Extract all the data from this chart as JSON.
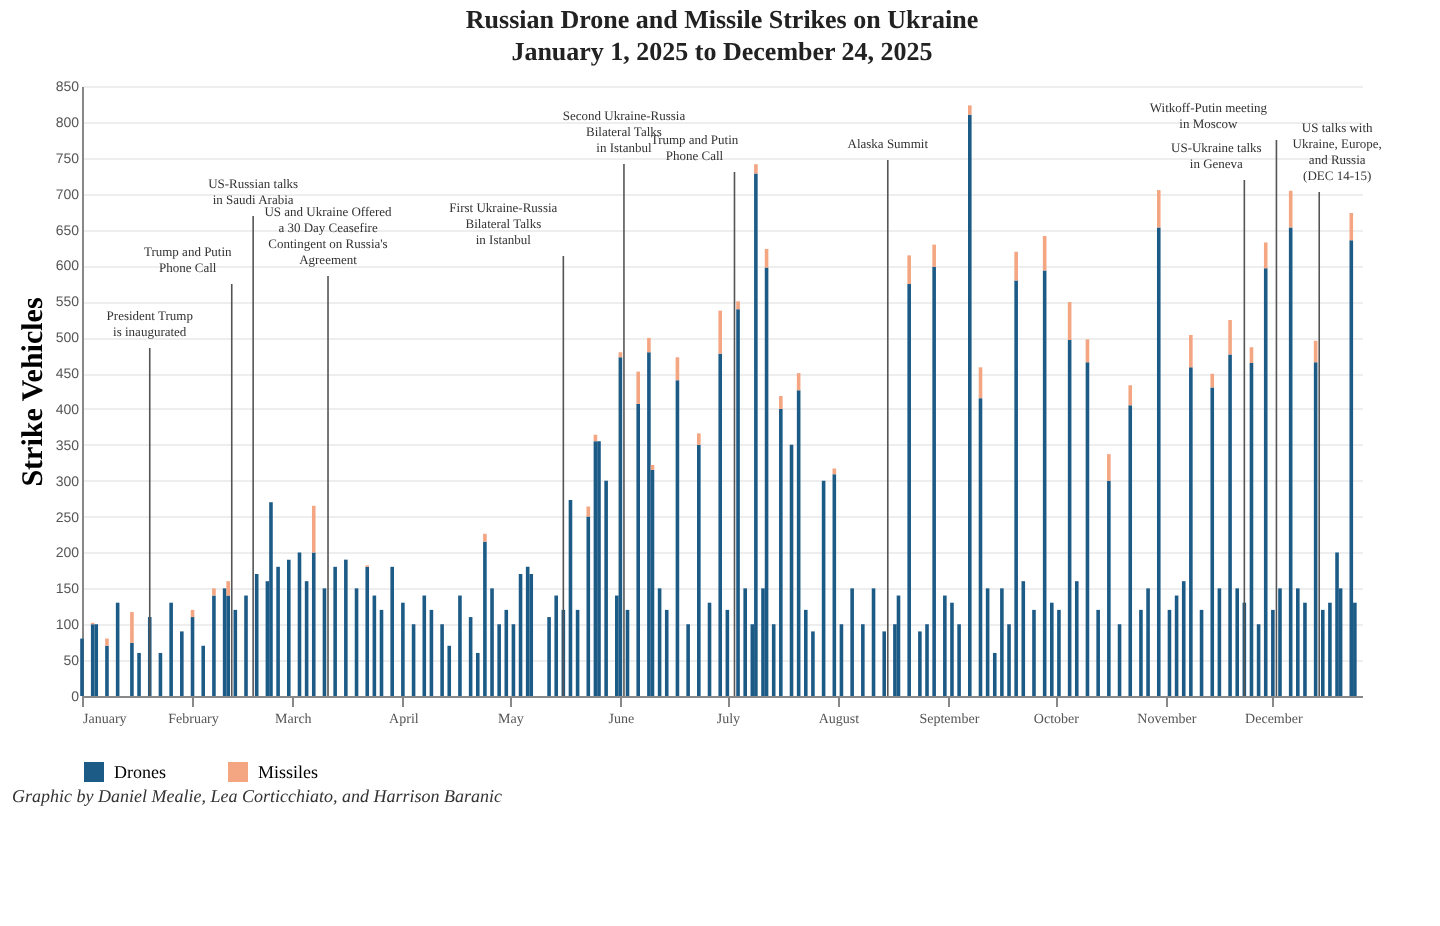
{
  "chart_data": {
    "type": "bar",
    "stacked": true,
    "title": "Russian Drone and Missile Strikes on Ukraine",
    "subtitle": "January 1, 2025 to December 24, 2025",
    "ylabel": "Strike Vehicles",
    "x": [
      "2025-01-01",
      "2025-01-04",
      "2025-01-05",
      "2025-01-08",
      "2025-01-11",
      "2025-01-15",
      "2025-01-17",
      "2025-01-20",
      "2025-01-23",
      "2025-01-26",
      "2025-01-29",
      "2025-02-01",
      "2025-02-04",
      "2025-02-07",
      "2025-02-10",
      "2025-02-11",
      "2025-02-13",
      "2025-02-16",
      "2025-02-19",
      "2025-02-22",
      "2025-02-23",
      "2025-02-25",
      "2025-02-28",
      "2025-03-03",
      "2025-03-05",
      "2025-03-07",
      "2025-03-10",
      "2025-03-13",
      "2025-03-16",
      "2025-03-19",
      "2025-03-22",
      "2025-03-24",
      "2025-03-26",
      "2025-03-29",
      "2025-04-01",
      "2025-04-04",
      "2025-04-07",
      "2025-04-09",
      "2025-04-12",
      "2025-04-14",
      "2025-04-17",
      "2025-04-20",
      "2025-04-22",
      "2025-04-24",
      "2025-04-26",
      "2025-04-28",
      "2025-04-30",
      "2025-05-02",
      "2025-05-04",
      "2025-05-06",
      "2025-05-07",
      "2025-05-12",
      "2025-05-14",
      "2025-05-16",
      "2025-05-18",
      "2025-05-20",
      "2025-05-23",
      "2025-05-25",
      "2025-05-26",
      "2025-05-28",
      "2025-05-31",
      "2025-06-01",
      "2025-06-03",
      "2025-06-06",
      "2025-06-09",
      "2025-06-10",
      "2025-06-12",
      "2025-06-14",
      "2025-06-17",
      "2025-06-20",
      "2025-06-23",
      "2025-06-26",
      "2025-06-29",
      "2025-07-01",
      "2025-07-04",
      "2025-07-06",
      "2025-07-08",
      "2025-07-09",
      "2025-07-11",
      "2025-07-12",
      "2025-07-14",
      "2025-07-16",
      "2025-07-19",
      "2025-07-21",
      "2025-07-23",
      "2025-07-25",
      "2025-07-28",
      "2025-07-31",
      "2025-08-02",
      "2025-08-05",
      "2025-08-08",
      "2025-08-11",
      "2025-08-14",
      "2025-08-17",
      "2025-08-18",
      "2025-08-21",
      "2025-08-24",
      "2025-08-26",
      "2025-08-28",
      "2025-08-31",
      "2025-09-02",
      "2025-09-04",
      "2025-09-07",
      "2025-09-10",
      "2025-09-12",
      "2025-09-14",
      "2025-09-16",
      "2025-09-18",
      "2025-09-20",
      "2025-09-22",
      "2025-09-25",
      "2025-09-28",
      "2025-09-30",
      "2025-10-02",
      "2025-10-05",
      "2025-10-07",
      "2025-10-10",
      "2025-10-13",
      "2025-10-16",
      "2025-10-19",
      "2025-10-22",
      "2025-10-25",
      "2025-10-27",
      "2025-10-30",
      "2025-11-02",
      "2025-11-04",
      "2025-11-06",
      "2025-11-08",
      "2025-11-11",
      "2025-11-14",
      "2025-11-16",
      "2025-11-19",
      "2025-11-21",
      "2025-11-23",
      "2025-11-25",
      "2025-11-27",
      "2025-11-29",
      "2025-12-01",
      "2025-12-03",
      "2025-12-06",
      "2025-12-08",
      "2025-12-10",
      "2025-12-13",
      "2025-12-15",
      "2025-12-17",
      "2025-12-19",
      "2025-12-20",
      "2025-12-23",
      "2025-12-24"
    ],
    "series": [
      {
        "name": "Drones",
        "color": "#1d5b87",
        "values": [
          80,
          100,
          100,
          70,
          130,
          74,
          60,
          110,
          60,
          130,
          90,
          110,
          70,
          140,
          150,
          140,
          120,
          140,
          170,
          160,
          270,
          180,
          190,
          200,
          160,
          200,
          150,
          180,
          190,
          150,
          180,
          140,
          120,
          180,
          130,
          100,
          140,
          120,
          100,
          70,
          140,
          110,
          60,
          215,
          150,
          100,
          120,
          100,
          170,
          180,
          170,
          110,
          140,
          120,
          273,
          120,
          250,
          355,
          355,
          300,
          140,
          472,
          120,
          407,
          479,
          315,
          150,
          120,
          440,
          100,
          350,
          130,
          477,
          120,
          539,
          150,
          100,
          728,
          150,
          597,
          100,
          400,
          350,
          426,
          120,
          90,
          300,
          309,
          100,
          150,
          100,
          150,
          90,
          100,
          140,
          574,
          90,
          100,
          598,
          140,
          130,
          100,
          810,
          415,
          150,
          60,
          150,
          100,
          579,
          160,
          120,
          593,
          130,
          120,
          496,
          160,
          465,
          120,
          300,
          100,
          405,
          120,
          150,
          653,
          120,
          140,
          160,
          458,
          120,
          430,
          150,
          476,
          150,
          130,
          464,
          100,
          596,
          120,
          150,
          653,
          150,
          130,
          465,
          120,
          130,
          200,
          150,
          635,
          130
        ]
      },
      {
        "name": "Missiles",
        "color": "#f4a582",
        "values": [
          0,
          2,
          0,
          10,
          0,
          43,
          0,
          0,
          0,
          0,
          0,
          10,
          0,
          10,
          0,
          20,
          0,
          0,
          0,
          0,
          0,
          0,
          0,
          0,
          0,
          65,
          0,
          0,
          0,
          0,
          2,
          0,
          0,
          0,
          0,
          0,
          0,
          0,
          0,
          0,
          0,
          0,
          0,
          11,
          0,
          0,
          0,
          0,
          0,
          0,
          0,
          0,
          0,
          0,
          0,
          0,
          14,
          9,
          0,
          0,
          0,
          7,
          0,
          45,
          20,
          7,
          0,
          0,
          32,
          0,
          16,
          0,
          60,
          0,
          11,
          0,
          0,
          13,
          0,
          26,
          0,
          18,
          0,
          24,
          0,
          0,
          0,
          8,
          0,
          0,
          0,
          0,
          0,
          0,
          0,
          40,
          0,
          0,
          31,
          0,
          0,
          0,
          13,
          43,
          0,
          0,
          0,
          0,
          40,
          0,
          0,
          48,
          0,
          0,
          53,
          0,
          32,
          0,
          37,
          0,
          28,
          0,
          0,
          52,
          0,
          0,
          0,
          45,
          0,
          19,
          0,
          48,
          0,
          0,
          22,
          0,
          36,
          0,
          0,
          51,
          0,
          0,
          30,
          0,
          0,
          0,
          0,
          38,
          0
        ]
      }
    ],
    "xlim": [
      "2025-01-01",
      "2025-12-26"
    ],
    "xticks": [
      {
        "value": "2025-01-01",
        "label": "January"
      },
      {
        "value": "2025-02-01",
        "label": "February"
      },
      {
        "value": "2025-03-01",
        "label": "March"
      },
      {
        "value": "2025-04-01",
        "label": "April"
      },
      {
        "value": "2025-05-01",
        "label": "May"
      },
      {
        "value": "2025-06-01",
        "label": "June"
      },
      {
        "value": "2025-07-01",
        "label": "July"
      },
      {
        "value": "2025-08-01",
        "label": "August"
      },
      {
        "value": "2025-09-01",
        "label": "September"
      },
      {
        "value": "2025-10-01",
        "label": "October"
      },
      {
        "value": "2025-11-01",
        "label": "November"
      },
      {
        "value": "2025-12-01",
        "label": "December"
      }
    ],
    "ylim": [
      0,
      850
    ],
    "yticks": [
      0,
      50,
      100,
      150,
      200,
      250,
      300,
      350,
      400,
      450,
      500,
      550,
      600,
      650,
      700,
      750,
      800,
      850
    ],
    "grid": "y",
    "legend": "bottom",
    "ref_lines": [
      {
        "axis": "x",
        "value": "2025-01-20",
        "label": "President Trump\nis inaugurated"
      },
      {
        "axis": "x",
        "value": "2025-02-12",
        "label": "Trump and Putin\nPhone Call"
      },
      {
        "axis": "x",
        "value": "2025-02-18",
        "label": "US-Russian talks\nin Saudi Arabia"
      },
      {
        "axis": "x",
        "value": "2025-03-11",
        "label": "US and Ukraine Offered\na 30 Day Ceasefire\nContingent on Russia's\nAgreement"
      },
      {
        "axis": "x",
        "value": "2025-05-16",
        "label": "First Ukraine-Russia\nBilateral Talks\nin Istanbul"
      },
      {
        "axis": "x",
        "value": "2025-06-02",
        "label": "Second Ukraine-Russia\nBilateral Talks\nin Istanbul"
      },
      {
        "axis": "x",
        "value": "2025-07-03",
        "label": "Trump and Putin\nPhone Call"
      },
      {
        "axis": "x",
        "value": "2025-08-15",
        "label": "Alaska Summit"
      },
      {
        "axis": "x",
        "value": "2025-11-23",
        "label": "US-Ukraine talks\nin Geneva"
      },
      {
        "axis": "x",
        "value": "2025-12-02",
        "label": "Witkoff-Putin meeting\nin Moscow"
      },
      {
        "axis": "x",
        "value": "2025-12-14",
        "label": "US talks with\nUkraine, Europe,\nand Russia\n(DEC 14-15)"
      }
    ],
    "annotations": [
      "Graphic by Daniel Mealie, Lea Corticchiato, and Harrison Baranic"
    ]
  }
}
